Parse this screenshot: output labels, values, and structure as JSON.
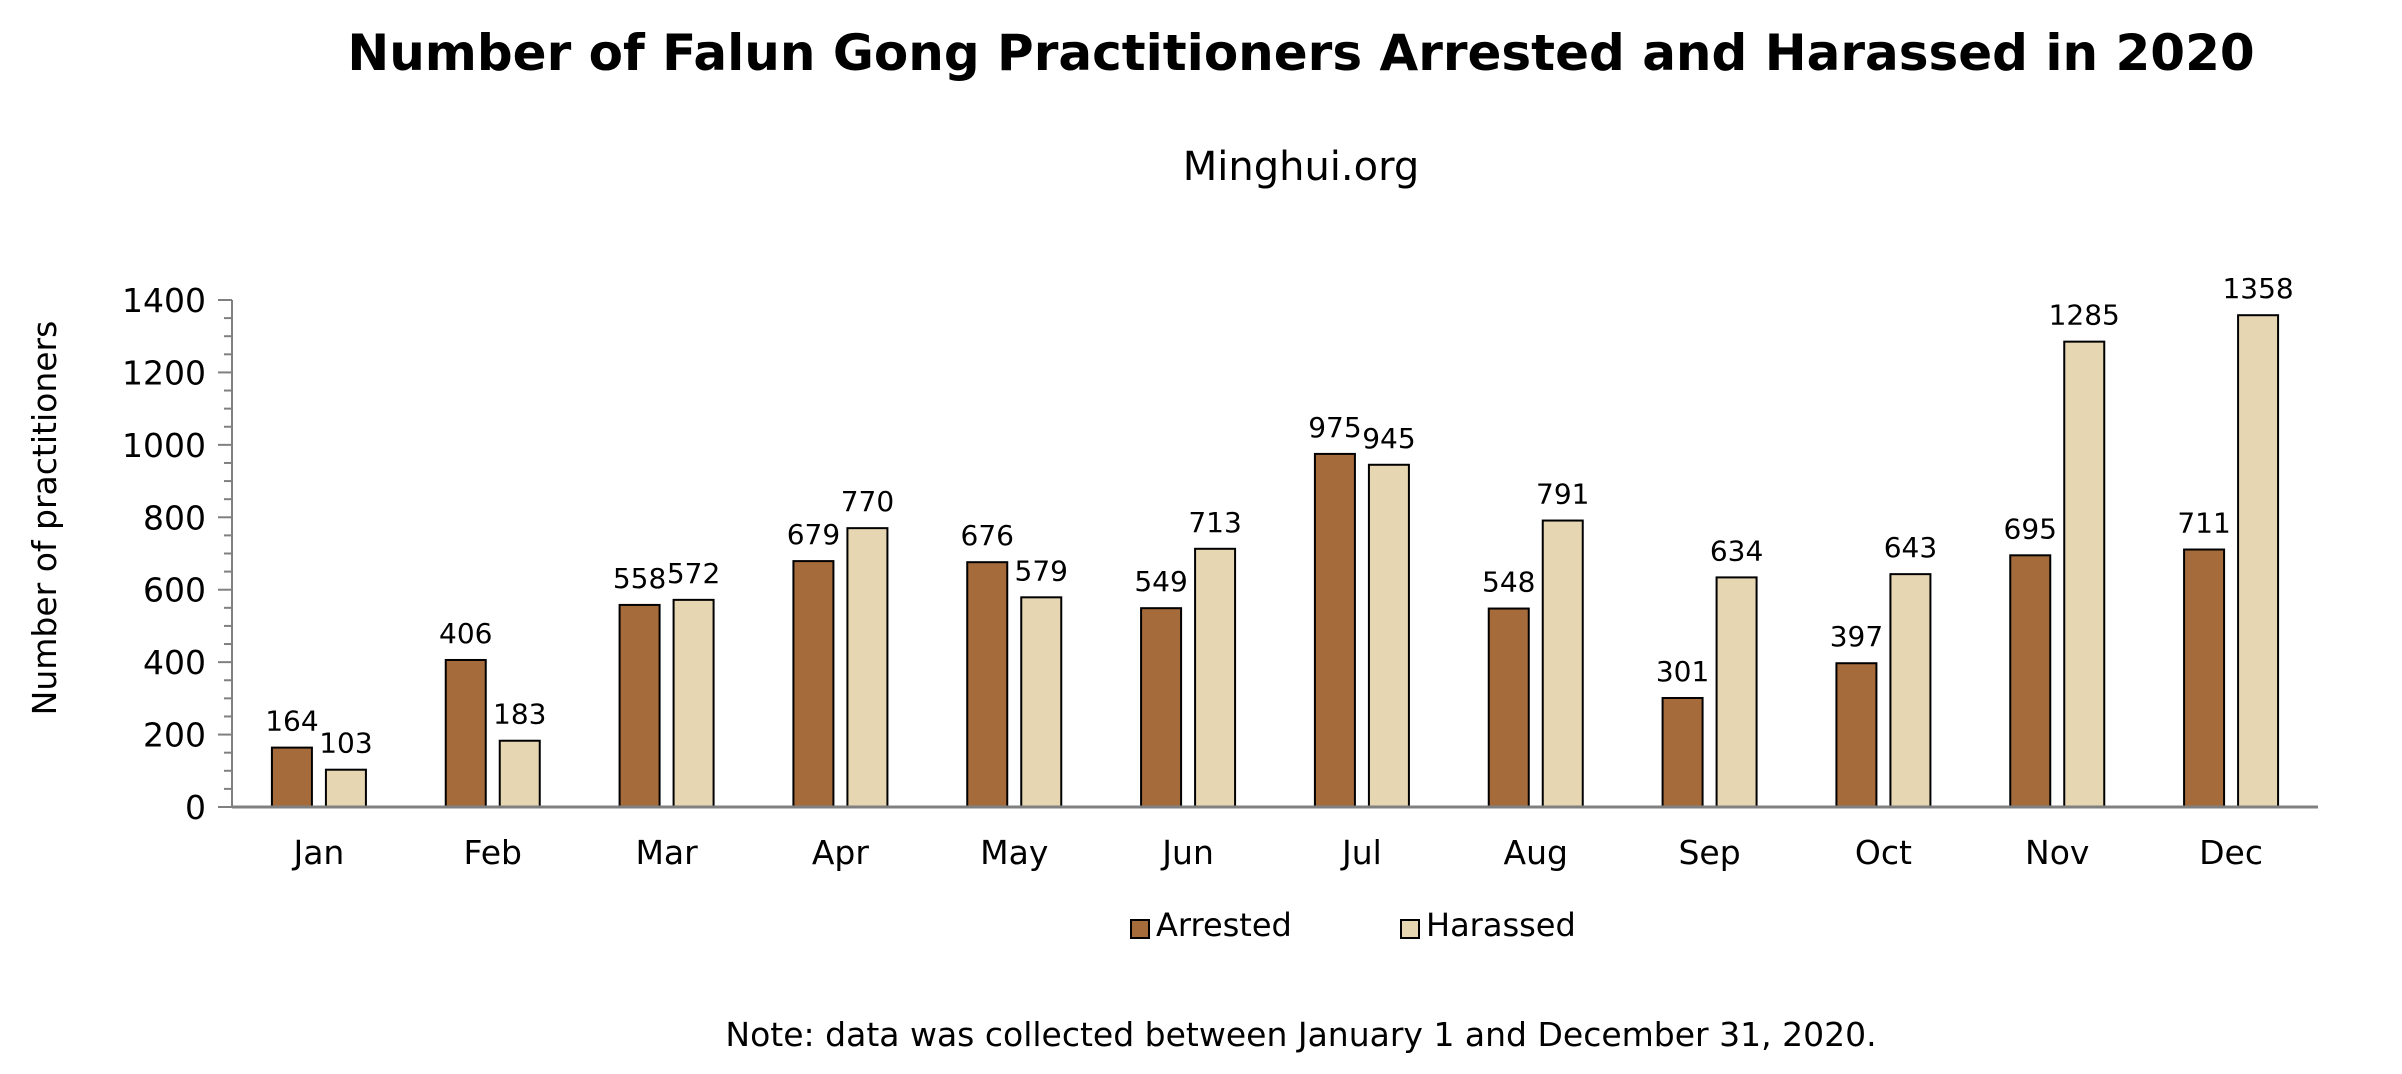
{
  "chart_data": {
    "type": "bar",
    "title": "Number of Falun Gong Practitioners Arrested and Harassed in 2020",
    "subtitle": "Minghui.org",
    "xlabel": "",
    "ylabel": "Number of practitioners",
    "categories": [
      "Jan",
      "Feb",
      "Mar",
      "Apr",
      "May",
      "Jun",
      "Jul",
      "Aug",
      "Sep",
      "Oct",
      "Nov",
      "Dec"
    ],
    "series": [
      {
        "name": "Arrested",
        "color": "#A66B3B",
        "values": [
          164,
          406,
          558,
          679,
          676,
          549,
          975,
          548,
          301,
          397,
          695,
          711
        ]
      },
      {
        "name": "Harassed",
        "color": "#E6D6B1",
        "values": [
          103,
          183,
          572,
          770,
          579,
          713,
          945,
          791,
          634,
          643,
          1285,
          1358
        ]
      }
    ],
    "ylim": [
      0,
      1400
    ],
    "yticks": [
      0,
      200,
      400,
      600,
      800,
      1000,
      1200,
      1400
    ],
    "grid": false,
    "legend_position": "bottom-center",
    "data_labels": true,
    "note": "Note: data was collected between January 1 and December 31, 2020."
  }
}
